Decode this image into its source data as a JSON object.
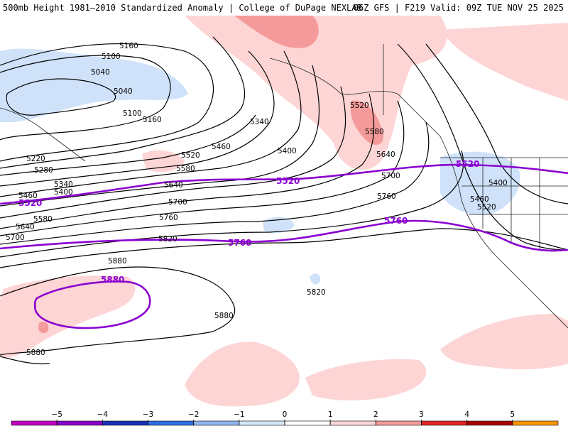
{
  "header": {
    "title_left": "500mb Height 1981–2010 Standardized Anomaly | College of DuPage NEXLAB",
    "title_right": "06Z GFS | F219 Valid: 09Z TUE NOV 25 2025"
  },
  "map": {
    "contour_labels": [
      {
        "text": "5160"
      },
      {
        "text": "5100"
      },
      {
        "text": "5040"
      },
      {
        "text": "5040"
      },
      {
        "text": "5100"
      },
      {
        "text": "5160"
      },
      {
        "text": "5340"
      },
      {
        "text": "5400"
      },
      {
        "text": "5460"
      },
      {
        "text": "5520"
      },
      {
        "text": "5580"
      },
      {
        "text": "5640"
      },
      {
        "text": "5700"
      },
      {
        "text": "5760"
      },
      {
        "text": "5820"
      },
      {
        "text": "5220"
      },
      {
        "text": "5280"
      },
      {
        "text": "5340"
      },
      {
        "text": "5400"
      },
      {
        "text": "5460"
      },
      {
        "text": "5580"
      },
      {
        "text": "5640"
      },
      {
        "text": "5700"
      },
      {
        "text": "5880"
      },
      {
        "text": "5880"
      },
      {
        "text": "5820"
      },
      {
        "text": "5880"
      },
      {
        "text": "5520"
      },
      {
        "text": "5580"
      },
      {
        "text": "5640"
      },
      {
        "text": "5700"
      },
      {
        "text": "5760"
      },
      {
        "text": "5400"
      },
      {
        "text": "5460"
      },
      {
        "text": "5520"
      }
    ],
    "highlight_labels": [
      {
        "text": "5520"
      },
      {
        "text": "5520"
      },
      {
        "text": "5520"
      },
      {
        "text": "5760"
      },
      {
        "text": "5760"
      },
      {
        "text": "5880"
      }
    ]
  },
  "legend": {
    "ticks": [
      "−5",
      "−4",
      "−3",
      "−2",
      "−1",
      "0",
      "1",
      "2",
      "3",
      "4",
      "5"
    ],
    "colors": [
      "#c000c0",
      "#8a00c8",
      "#1a30b8",
      "#2f6ee0",
      "#8fb4ee",
      "#d6e6fa",
      "#ffffff",
      "#fdd5d5",
      "#f59a9a",
      "#e02424",
      "#a80000",
      "#ff9800"
    ]
  }
}
